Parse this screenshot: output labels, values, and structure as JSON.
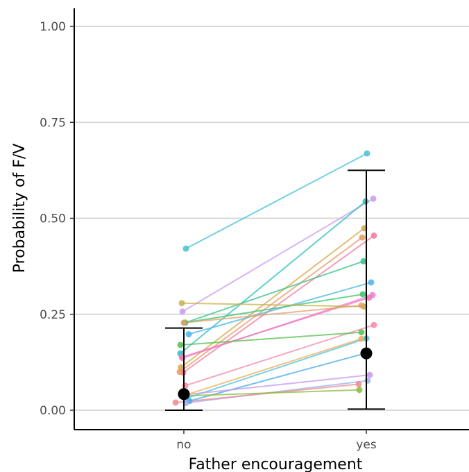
{
  "chart_data": {
    "type": "line",
    "title": "",
    "xlabel": "Father encouragement",
    "ylabel": "Probability of F/V",
    "categories": [
      "no",
      "yes"
    ],
    "ylim": [
      -0.05,
      1.05
    ],
    "yticks": [
      0.0,
      0.25,
      0.5,
      0.75,
      1.0
    ],
    "ytick_labels": [
      "0.00",
      "0.25",
      "0.50",
      "0.75",
      "1.00"
    ],
    "grid": "horizontal major",
    "legend": "none",
    "summary": {
      "color": "#000000",
      "points": [
        {
          "x": "no",
          "mean": 0.042,
          "lower": 0.0,
          "upper": 0.214
        },
        {
          "x": "yes",
          "mean": 0.148,
          "lower": 0.003,
          "upper": 0.625
        }
      ]
    },
    "series": [
      {
        "color": "#45c3d4",
        "values": [
          0.421,
          0.669
        ]
      },
      {
        "color": "#c79cf2",
        "values": [
          0.257,
          0.551
        ]
      },
      {
        "color": "#2bc0c0",
        "values": [
          0.148,
          0.544
        ]
      },
      {
        "color": "#d4a84a",
        "values": [
          0.112,
          0.474
        ]
      },
      {
        "color": "#f07aa0",
        "values": [
          0.098,
          0.455
        ]
      },
      {
        "color": "#e89a64",
        "values": [
          0.1,
          0.45
        ]
      },
      {
        "color": "#38c08a",
        "values": [
          0.228,
          0.388
        ]
      },
      {
        "color": "#4ab4ec",
        "values": [
          0.198,
          0.333
        ]
      },
      {
        "color": "#3ec46e",
        "values": [
          0.228,
          0.302
        ]
      },
      {
        "color": "#f27bd8",
        "values": [
          0.136,
          0.3
        ]
      },
      {
        "color": "#f07ab8",
        "values": [
          0.138,
          0.293
        ]
      },
      {
        "color": "#c8b24a",
        "values": [
          0.279,
          0.27
        ]
      },
      {
        "color": "#e4a068",
        "values": [
          0.228,
          0.273
        ]
      },
      {
        "color": "#f48aa6",
        "values": [
          0.064,
          0.222
        ]
      },
      {
        "color": "#56c04e",
        "values": [
          0.17,
          0.203
        ]
      },
      {
        "color": "#ecae5a",
        "values": [
          0.037,
          0.186
        ]
      },
      {
        "color": "#4ac4dc",
        "values": [
          0.032,
          0.187
        ]
      },
      {
        "color": "#4aa8ec",
        "values": [
          0.024,
          0.15
        ]
      },
      {
        "color": "#c49af0",
        "values": [
          0.04,
          0.092
        ]
      },
      {
        "color": "#9ab0f4",
        "values": [
          0.019,
          0.077
        ]
      },
      {
        "color": "#f08a90",
        "values": [
          0.02,
          0.068
        ]
      },
      {
        "color": "#8abc3a",
        "values": [
          0.037,
          0.053
        ]
      }
    ]
  }
}
